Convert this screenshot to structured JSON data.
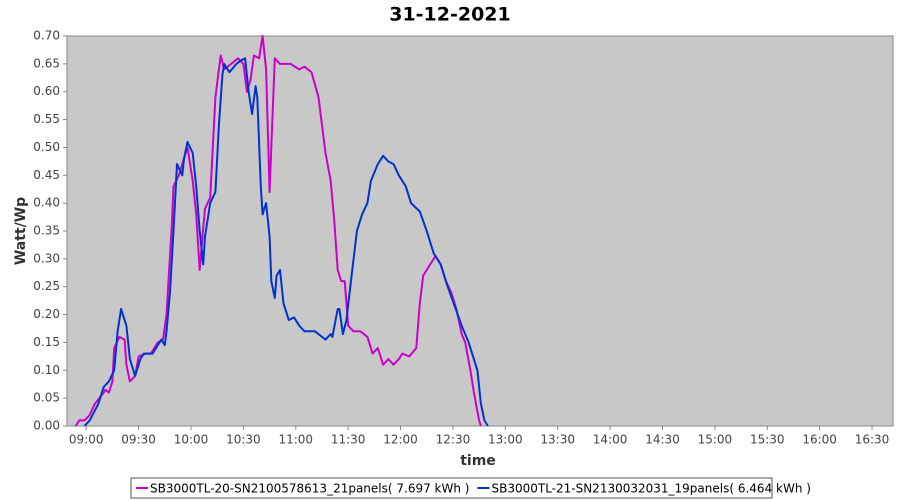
{
  "chart_data": {
    "type": "line",
    "title": "31-12-2021",
    "x_label": "time",
    "y_label": "Watt/Wp",
    "xlim": [
      529,
      1002
    ],
    "ylim": [
      0,
      0.7
    ],
    "xticks": [
      {
        "value": 540,
        "label": "09:00"
      },
      {
        "value": 570,
        "label": "09:30"
      },
      {
        "value": 600,
        "label": "10:00"
      },
      {
        "value": 630,
        "label": "10:30"
      },
      {
        "value": 660,
        "label": "11:00"
      },
      {
        "value": 690,
        "label": "11:30"
      },
      {
        "value": 720,
        "label": "12:00"
      },
      {
        "value": 750,
        "label": "12:30"
      },
      {
        "value": 780,
        "label": "13:00"
      },
      {
        "value": 810,
        "label": "13:30"
      },
      {
        "value": 840,
        "label": "14:00"
      },
      {
        "value": 870,
        "label": "14:30"
      },
      {
        "value": 900,
        "label": "15:00"
      },
      {
        "value": 930,
        "label": "15:30"
      },
      {
        "value": 960,
        "label": "16:00"
      },
      {
        "value": 990,
        "label": "16:30"
      }
    ],
    "yticks": [
      {
        "value": 0,
        "label": "0.00"
      },
      0.05,
      {
        "value": 0.1,
        "label": "0.10"
      },
      0.15,
      {
        "value": 0.2,
        "label": "0.20"
      },
      0.25,
      {
        "value": 0.3,
        "label": "0.30"
      },
      0.35,
      {
        "value": 0.4,
        "label": "0.40"
      },
      0.45,
      {
        "value": 0.5,
        "label": "0.50"
      },
      0.55,
      {
        "value": 0.6,
        "label": "0.60"
      },
      0.65,
      {
        "value": 0.7,
        "label": "0.70"
      }
    ],
    "grid": false,
    "series": [
      {
        "name": "SB3000TL-20-SN2100578613_21panels( 7.697 kWh )",
        "color": "#cc00cc",
        "x": [
          534,
          536,
          539,
          542,
          545,
          550,
          551,
          553,
          555,
          556,
          559,
          562,
          563,
          565,
          568,
          570,
          574,
          577,
          581,
          584,
          586,
          589,
          590,
          593,
          597,
          598,
          601,
          603,
          605,
          606,
          608,
          611,
          614,
          617,
          619,
          623,
          627,
          630,
          632,
          634,
          636,
          639,
          641,
          643,
          645,
          646,
          648,
          651,
          657,
          662,
          665,
          669,
          673,
          677,
          680,
          682,
          684,
          686,
          688,
          690,
          693,
          697,
          701,
          704,
          707,
          710,
          713,
          716,
          719,
          721,
          725,
          729,
          731,
          733,
          737,
          740,
          743,
          746,
          749,
          752,
          755,
          757,
          760,
          762,
          765,
          766
        ],
        "values": [
          0,
          0.01,
          0.01,
          0.02,
          0.04,
          0.06,
          0.065,
          0.06,
          0.08,
          0.14,
          0.16,
          0.155,
          0.11,
          0.08,
          0.09,
          0.125,
          0.13,
          0.13,
          0.15,
          0.155,
          0.2,
          0.36,
          0.43,
          0.45,
          0.49,
          0.5,
          0.44,
          0.38,
          0.28,
          0.32,
          0.39,
          0.41,
          0.59,
          0.665,
          0.64,
          0.65,
          0.66,
          0.65,
          0.6,
          0.62,
          0.665,
          0.66,
          0.7,
          0.64,
          0.42,
          0.5,
          0.66,
          0.65,
          0.65,
          0.64,
          0.645,
          0.635,
          0.59,
          0.49,
          0.44,
          0.37,
          0.28,
          0.26,
          0.26,
          0.18,
          0.17,
          0.17,
          0.16,
          0.13,
          0.14,
          0.11,
          0.12,
          0.11,
          0.12,
          0.13,
          0.125,
          0.14,
          0.22,
          0.27,
          0.29,
          0.305,
          0.29,
          0.26,
          0.24,
          0.21,
          0.165,
          0.15,
          0.1,
          0.06,
          0.01,
          0
        ]
      },
      {
        "name": "SB3000TL-21-SN2130032031_19panels( 6.464 kWh )",
        "color": "#0033cc",
        "x": [
          539,
          542,
          547,
          550,
          553,
          556,
          558,
          560,
          563,
          565,
          568,
          571,
          573,
          578,
          583,
          585,
          586,
          588,
          590,
          592,
          595,
          596,
          598,
          601,
          603,
          605,
          607,
          608,
          611,
          614,
          616,
          618,
          619,
          622,
          626,
          628,
          631,
          633,
          635,
          637,
          638,
          640,
          641,
          643,
          645,
          646,
          648,
          649,
          651,
          653,
          656,
          659,
          662,
          665,
          668,
          671,
          675,
          677,
          680,
          681,
          684,
          685,
          687,
          689,
          692,
          695,
          698,
          701,
          703,
          707,
          710,
          713,
          716,
          719,
          723,
          726,
          731,
          735,
          739,
          743,
          747,
          751,
          755,
          759,
          764,
          766,
          768,
          770
        ],
        "values": [
          0,
          0.01,
          0.04,
          0.07,
          0.08,
          0.1,
          0.17,
          0.21,
          0.18,
          0.12,
          0.09,
          0.12,
          0.13,
          0.13,
          0.155,
          0.145,
          0.17,
          0.24,
          0.35,
          0.47,
          0.45,
          0.48,
          0.51,
          0.49,
          0.43,
          0.35,
          0.29,
          0.34,
          0.4,
          0.42,
          0.54,
          0.63,
          0.65,
          0.635,
          0.65,
          0.655,
          0.66,
          0.6,
          0.56,
          0.61,
          0.59,
          0.43,
          0.38,
          0.4,
          0.34,
          0.26,
          0.23,
          0.27,
          0.28,
          0.22,
          0.19,
          0.195,
          0.18,
          0.17,
          0.17,
          0.17,
          0.16,
          0.155,
          0.165,
          0.16,
          0.21,
          0.21,
          0.165,
          0.19,
          0.27,
          0.35,
          0.38,
          0.4,
          0.44,
          0.47,
          0.485,
          0.475,
          0.47,
          0.45,
          0.43,
          0.4,
          0.385,
          0.35,
          0.31,
          0.29,
          0.25,
          0.215,
          0.18,
          0.15,
          0.1,
          0.04,
          0.01,
          0
        ]
      }
    ]
  }
}
